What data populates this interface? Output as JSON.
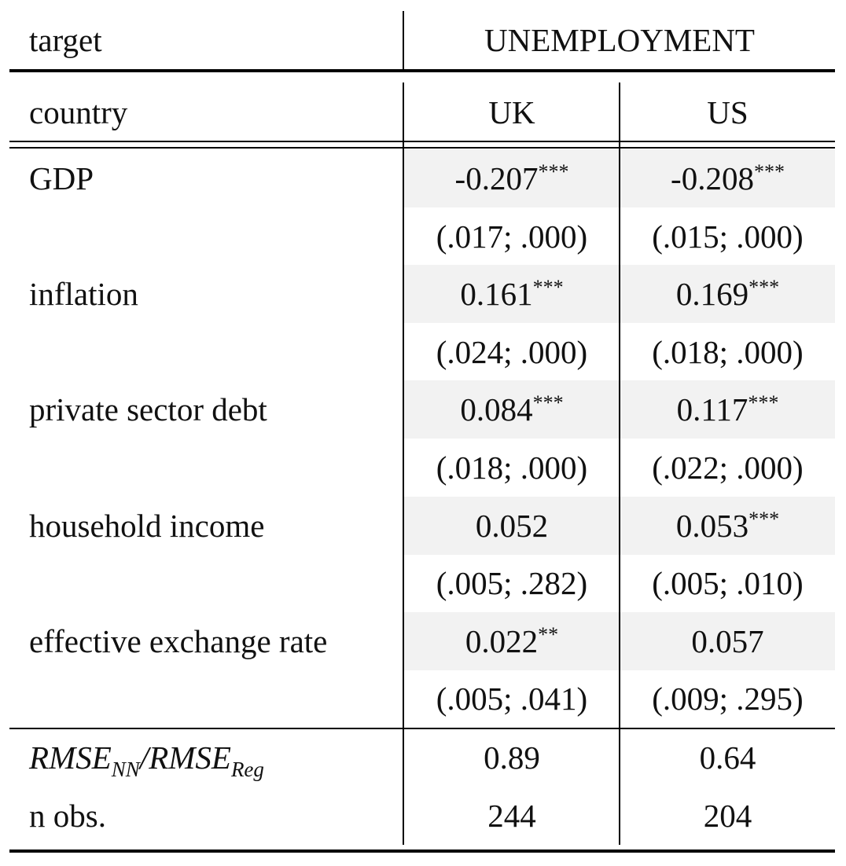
{
  "header": {
    "target_label": "target",
    "target_value": "UNEMPLOYMENT",
    "country_label": "country",
    "countries": [
      "UK",
      "US"
    ]
  },
  "rows": [
    {
      "label": "GDP",
      "uk": {
        "coef": "-0.207",
        "stars": "***",
        "ci": "(.017; .000)"
      },
      "us": {
        "coef": "-0.208",
        "stars": "***",
        "ci": "(.015; .000)"
      }
    },
    {
      "label": "inflation",
      "uk": {
        "coef": "0.161",
        "stars": "***",
        "ci": "(.024; .000)"
      },
      "us": {
        "coef": "0.169",
        "stars": "***",
        "ci": "(.018; .000)"
      }
    },
    {
      "label": "private sector debt",
      "uk": {
        "coef": "0.084",
        "stars": "***",
        "ci": "(.018; .000)"
      },
      "us": {
        "coef": "0.117",
        "stars": "***",
        "ci": "(.022; .000)"
      }
    },
    {
      "label": "household income",
      "uk": {
        "coef": "0.052",
        "stars": "",
        "ci": "(.005; .282)"
      },
      "us": {
        "coef": "0.053",
        "stars": "***",
        "ci": "(.005; .010)"
      }
    },
    {
      "label": "effective exchange rate",
      "uk": {
        "coef": "0.022",
        "stars": "**",
        "ci": "(.005; .041)"
      },
      "us": {
        "coef": "0.057",
        "stars": "",
        "ci": "(.009; .295)"
      }
    }
  ],
  "footer": {
    "rmse": {
      "main1": "RMSE",
      "sub1": "NN",
      "slash": "/",
      "main2": "RMSE",
      "sub2": "Reg",
      "uk": "0.89",
      "us": "0.64"
    },
    "nobs": {
      "label": "n obs.",
      "uk": "244",
      "us": "204"
    }
  },
  "colors": {
    "shade": "#f2f2f2",
    "rule": "#000000"
  }
}
